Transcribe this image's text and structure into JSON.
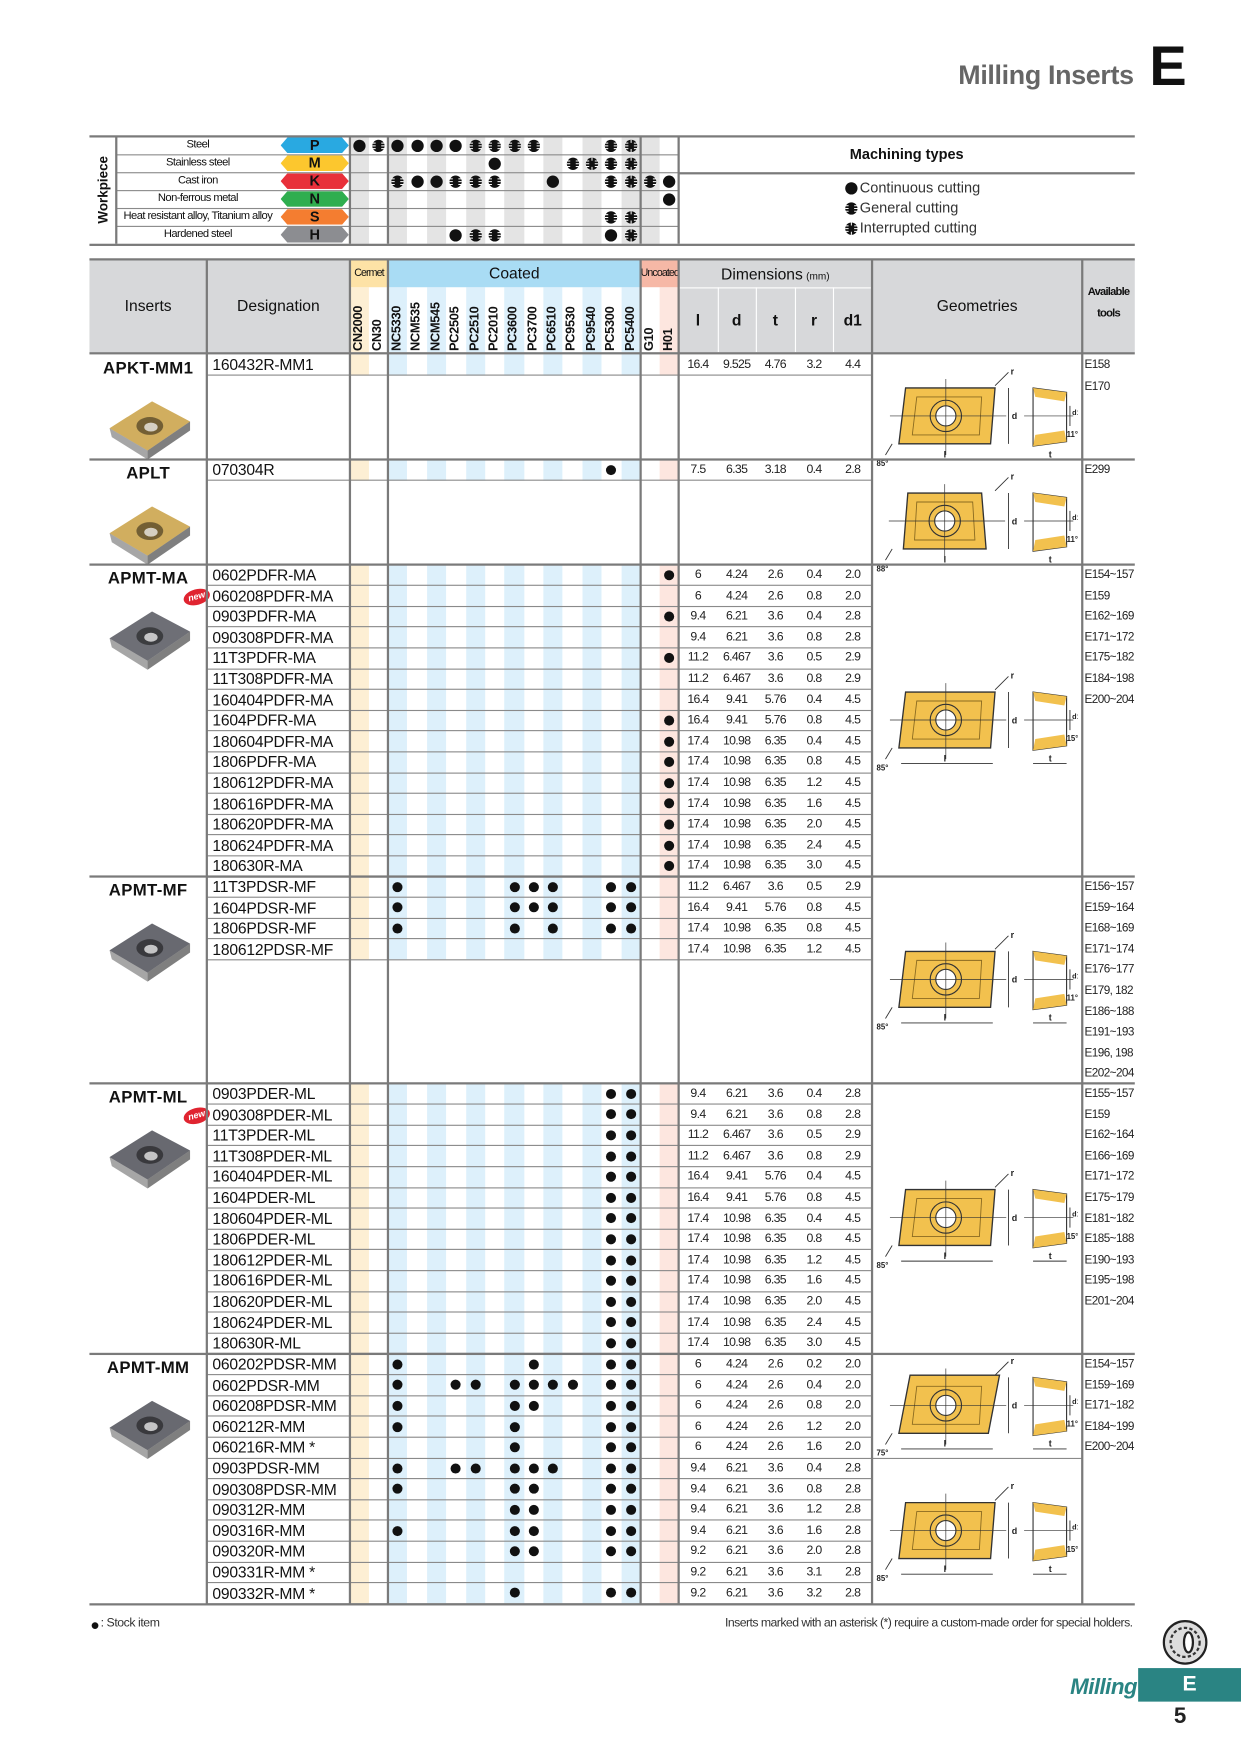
{
  "header": {
    "title": "Milling Inserts",
    "chapter": "E"
  },
  "grade_groups": [
    {
      "label": "Cermet",
      "color": "#fde2a6",
      "stripe": "#fdefd4",
      "grades": [
        "CN2000",
        "CN30"
      ]
    },
    {
      "label": "Coated",
      "color": "#a9dcf4",
      "stripe": "#ddf0fb",
      "grades": [
        "NC5330",
        "NCM535",
        "NCM545",
        "PC2505",
        "PC2510",
        "PC2010",
        "PC3600",
        "PC3700",
        "PC6510",
        "PC9530",
        "PC9540",
        "PC5300",
        "PC5400"
      ]
    },
    {
      "label": "Uncoated",
      "color": "#f6b8a6",
      "stripe": "#fde6df",
      "grades": [
        "G10",
        "H01"
      ]
    }
  ],
  "workpiece": {
    "label": "Workpiece",
    "materials": [
      {
        "name": "Steel",
        "code": "P",
        "color": "#29a9e1",
        "marks": [
          "c",
          "g",
          "c",
          "c",
          "c",
          "c",
          "g",
          "g",
          "g",
          "g",
          "",
          "",
          "",
          "g",
          "i",
          "",
          ""
        ]
      },
      {
        "name": "Stainless steel",
        "code": "M",
        "color": "#fcc72e",
        "marks": [
          "",
          "",
          "",
          "",
          "",
          "",
          "",
          "c",
          "",
          "",
          "",
          "g",
          "i",
          "g",
          "i",
          "",
          ""
        ]
      },
      {
        "name": "Cast iron",
        "code": "K",
        "color": "#e8303a",
        "marks": [
          "",
          "",
          "g",
          "c",
          "c",
          "g",
          "g",
          "g",
          "",
          "",
          "c",
          "",
          "",
          "g",
          "i",
          "g",
          "c"
        ]
      },
      {
        "name": "Non-ferrous metal",
        "code": "N",
        "color": "#2fae4f",
        "marks": [
          "",
          "",
          "",
          "",
          "",
          "",
          "",
          "",
          "",
          "",
          "",
          "",
          "",
          "",
          "",
          "",
          "c"
        ]
      },
      {
        "name": "Heat resistant alloy, Titanium alloy",
        "code": "S",
        "color": "#f47d30",
        "marks": [
          "",
          "",
          "",
          "",
          "",
          "",
          "",
          "",
          "",
          "",
          "",
          "",
          "",
          "g",
          "i",
          "",
          ""
        ]
      },
      {
        "name": "Hardened steel",
        "code": "H",
        "color": "#8c8d91",
        "marks": [
          "",
          "",
          "",
          "",
          "",
          "c",
          "g",
          "g",
          "",
          "",
          "",
          "",
          "",
          "c",
          "i",
          "",
          ""
        ]
      }
    ]
  },
  "machining_types": {
    "title": "Machining types",
    "legend": [
      {
        "symbol": "c",
        "label": "Continuous cutting"
      },
      {
        "symbol": "g",
        "label": "General cutting"
      },
      {
        "symbol": "i",
        "label": "Interrupted cutting"
      }
    ]
  },
  "table": {
    "inserts": "Inserts",
    "designation": "Designation",
    "dimensions": "Dimensions",
    "dimensions_unit": "(mm)",
    "dims": [
      "l",
      "d",
      "t",
      "r",
      "d1"
    ],
    "geometries": "Geometries",
    "tools_line1": "Available",
    "tools_line2": "tools"
  },
  "sections": [
    {
      "name": "APKT-MM1",
      "new": false,
      "insert_color": "#c9a043",
      "rows": [
        {
          "designation": "160432R-MM1",
          "stock": [],
          "dims": [
            "16.4",
            "9.525",
            "4.76",
            "3.2",
            "4.4"
          ]
        }
      ],
      "tools": [
        "E158",
        "E170"
      ],
      "geometries": [
        {
          "lead_angle": "85°",
          "clearance_angle": "11°"
        }
      ]
    },
    {
      "name": "APLT",
      "new": false,
      "insert_color": "#c9a043",
      "rows": [
        {
          "designation": "070304R",
          "stock": [
            "PC5300"
          ],
          "dims": [
            "7.5",
            "6.35",
            "3.18",
            "0.4",
            "2.8"
          ]
        }
      ],
      "tools": [
        "E299"
      ],
      "geometries": [
        {
          "lead_angle": "88°",
          "clearance_angle": "11°"
        }
      ]
    },
    {
      "name": "APMT-MA",
      "new": true,
      "insert_color": "#55565e",
      "rows": [
        {
          "designation": "0602PDFR-MA",
          "stock": [
            "H01"
          ],
          "dims": [
            "6",
            "4.24",
            "2.6",
            "0.4",
            "2.0"
          ]
        },
        {
          "designation": "060208PDFR-MA",
          "stock": [],
          "dims": [
            "6",
            "4.24",
            "2.6",
            "0.8",
            "2.0"
          ]
        },
        {
          "designation": "0903PDFR-MA",
          "stock": [
            "H01"
          ],
          "dims": [
            "9.4",
            "6.21",
            "3.6",
            "0.4",
            "2.8"
          ]
        },
        {
          "designation": "090308PDFR-MA",
          "stock": [],
          "dims": [
            "9.4",
            "6.21",
            "3.6",
            "0.8",
            "2.8"
          ]
        },
        {
          "designation": "11T3PDFR-MA",
          "stock": [
            "H01"
          ],
          "dims": [
            "11.2",
            "6.467",
            "3.6",
            "0.5",
            "2.9"
          ]
        },
        {
          "designation": "11T308PDFR-MA",
          "stock": [],
          "dims": [
            "11.2",
            "6.467",
            "3.6",
            "0.8",
            "2.9"
          ]
        },
        {
          "designation": "160404PDFR-MA",
          "stock": [],
          "dims": [
            "16.4",
            "9.41",
            "5.76",
            "0.4",
            "4.5"
          ]
        },
        {
          "designation": "1604PDFR-MA",
          "stock": [
            "H01"
          ],
          "dims": [
            "16.4",
            "9.41",
            "5.76",
            "0.8",
            "4.5"
          ]
        },
        {
          "designation": "180604PDFR-MA",
          "stock": [
            "H01"
          ],
          "dims": [
            "17.4",
            "10.98",
            "6.35",
            "0.4",
            "4.5"
          ]
        },
        {
          "designation": "1806PDFR-MA",
          "stock": [
            "H01"
          ],
          "dims": [
            "17.4",
            "10.98",
            "6.35",
            "0.8",
            "4.5"
          ]
        },
        {
          "designation": "180612PDFR-MA",
          "stock": [
            "H01"
          ],
          "dims": [
            "17.4",
            "10.98",
            "6.35",
            "1.2",
            "4.5"
          ]
        },
        {
          "designation": "180616PDFR-MA",
          "stock": [
            "H01"
          ],
          "dims": [
            "17.4",
            "10.98",
            "6.35",
            "1.6",
            "4.5"
          ]
        },
        {
          "designation": "180620PDFR-MA",
          "stock": [
            "H01"
          ],
          "dims": [
            "17.4",
            "10.98",
            "6.35",
            "2.0",
            "4.5"
          ]
        },
        {
          "designation": "180624PDFR-MA",
          "stock": [
            "H01"
          ],
          "dims": [
            "17.4",
            "10.98",
            "6.35",
            "2.4",
            "4.5"
          ]
        },
        {
          "designation": "180630R-MA",
          "stock": [
            "H01"
          ],
          "dims": [
            "17.4",
            "10.98",
            "6.35",
            "3.0",
            "4.5"
          ]
        }
      ],
      "tools": [
        "E154~157",
        "E159",
        "E162~169",
        "E171~172",
        "E175~182",
        "E184~198",
        "E200~204"
      ],
      "geometries": [
        {
          "lead_angle": "85°",
          "clearance_angle": "15°"
        }
      ]
    },
    {
      "name": "APMT-MF",
      "new": false,
      "insert_color": "#4e4f57",
      "rows": [
        {
          "designation": "11T3PDSR-MF",
          "stock": [
            "NC5330",
            "PC3600",
            "PC3700",
            "PC6510",
            "PC5300",
            "PC5400"
          ],
          "dims": [
            "11.2",
            "6.467",
            "3.6",
            "0.5",
            "2.9"
          ]
        },
        {
          "designation": "1604PDSR-MF",
          "stock": [
            "NC5330",
            "PC3600",
            "PC3700",
            "PC6510",
            "PC5300",
            "PC5400"
          ],
          "dims": [
            "16.4",
            "9.41",
            "5.76",
            "0.8",
            "4.5"
          ]
        },
        {
          "designation": "1806PDSR-MF",
          "stock": [
            "NC5330",
            "PC3600",
            "PC6510",
            "PC5300",
            "PC5400"
          ],
          "dims": [
            "17.4",
            "10.98",
            "6.35",
            "0.8",
            "4.5"
          ]
        },
        {
          "designation": "180612PDSR-MF",
          "stock": [],
          "dims": [
            "17.4",
            "10.98",
            "6.35",
            "1.2",
            "4.5"
          ]
        }
      ],
      "tools": [
        "E156~157",
        "E159~164",
        "E168~169",
        "E171~174",
        "E176~177",
        "E179, 182",
        "E186~188",
        "E191~193",
        "E196, 198",
        "E202~204"
      ],
      "geometries": [
        {
          "lead_angle": "85°",
          "clearance_angle": "11°"
        }
      ]
    },
    {
      "name": "APMT-ML",
      "new": true,
      "insert_color": "#4e4f57",
      "rows": [
        {
          "designation": "0903PDER-ML",
          "stock": [
            "PC5300",
            "PC5400"
          ],
          "dims": [
            "9.4",
            "6.21",
            "3.6",
            "0.4",
            "2.8"
          ]
        },
        {
          "designation": "090308PDER-ML",
          "stock": [
            "PC5300",
            "PC5400"
          ],
          "dims": [
            "9.4",
            "6.21",
            "3.6",
            "0.8",
            "2.8"
          ]
        },
        {
          "designation": "11T3PDER-ML",
          "stock": [
            "PC5300",
            "PC5400"
          ],
          "dims": [
            "11.2",
            "6.467",
            "3.6",
            "0.5",
            "2.9"
          ]
        },
        {
          "designation": "11T308PDER-ML",
          "stock": [
            "PC5300",
            "PC5400"
          ],
          "dims": [
            "11.2",
            "6.467",
            "3.6",
            "0.8",
            "2.9"
          ]
        },
        {
          "designation": "160404PDER-ML",
          "stock": [
            "PC5300",
            "PC5400"
          ],
          "dims": [
            "16.4",
            "9.41",
            "5.76",
            "0.4",
            "4.5"
          ]
        },
        {
          "designation": "1604PDER-ML",
          "stock": [
            "PC5300",
            "PC5400"
          ],
          "dims": [
            "16.4",
            "9.41",
            "5.76",
            "0.8",
            "4.5"
          ]
        },
        {
          "designation": "180604PDER-ML",
          "stock": [
            "PC5300",
            "PC5400"
          ],
          "dims": [
            "17.4",
            "10.98",
            "6.35",
            "0.4",
            "4.5"
          ]
        },
        {
          "designation": "1806PDER-ML",
          "stock": [
            "PC5300",
            "PC5400"
          ],
          "dims": [
            "17.4",
            "10.98",
            "6.35",
            "0.8",
            "4.5"
          ]
        },
        {
          "designation": "180612PDER-ML",
          "stock": [
            "PC5300",
            "PC5400"
          ],
          "dims": [
            "17.4",
            "10.98",
            "6.35",
            "1.2",
            "4.5"
          ]
        },
        {
          "designation": "180616PDER-ML",
          "stock": [
            "PC5300",
            "PC5400"
          ],
          "dims": [
            "17.4",
            "10.98",
            "6.35",
            "1.6",
            "4.5"
          ]
        },
        {
          "designation": "180620PDER-ML",
          "stock": [
            "PC5300",
            "PC5400"
          ],
          "dims": [
            "17.4",
            "10.98",
            "6.35",
            "2.0",
            "4.5"
          ]
        },
        {
          "designation": "180624PDER-ML",
          "stock": [
            "PC5300",
            "PC5400"
          ],
          "dims": [
            "17.4",
            "10.98",
            "6.35",
            "2.4",
            "4.5"
          ]
        },
        {
          "designation": "180630R-ML",
          "stock": [
            "PC5300",
            "PC5400"
          ],
          "dims": [
            "17.4",
            "10.98",
            "6.35",
            "3.0",
            "4.5"
          ]
        }
      ],
      "tools": [
        "E155~157",
        "E159",
        "E162~164",
        "E166~169",
        "E171~172",
        "E175~179",
        "E181~182",
        "E185~188",
        "E190~193",
        "E195~198",
        "E201~204"
      ],
      "geometries": [
        {
          "lead_angle": "85°",
          "clearance_angle": "15°"
        }
      ]
    },
    {
      "name": "APMT-MM",
      "new": false,
      "insert_color": "#4e4f57",
      "rows": [
        {
          "designation": "060202PDSR-MM",
          "stock": [
            "NC5330",
            "PC3700",
            "PC5300",
            "PC5400"
          ],
          "dims": [
            "6",
            "4.24",
            "2.6",
            "0.2",
            "2.0"
          ]
        },
        {
          "designation": "0602PDSR-MM",
          "stock": [
            "NC5330",
            "PC2505",
            "PC2510",
            "PC3600",
            "PC3700",
            "PC6510",
            "PC9530",
            "PC5300",
            "PC5400"
          ],
          "dims": [
            "6",
            "4.24",
            "2.6",
            "0.4",
            "2.0"
          ]
        },
        {
          "designation": "060208PDSR-MM",
          "stock": [
            "NC5330",
            "PC3600",
            "PC3700",
            "PC5300",
            "PC5400"
          ],
          "dims": [
            "6",
            "4.24",
            "2.6",
            "0.8",
            "2.0"
          ]
        },
        {
          "designation": "060212R-MM",
          "stock": [
            "NC5330",
            "PC3600",
            "PC5300",
            "PC5400"
          ],
          "dims": [
            "6",
            "4.24",
            "2.6",
            "1.2",
            "2.0"
          ]
        },
        {
          "designation": "060216R-MM *",
          "stock": [
            "PC3600",
            "PC5300",
            "PC5400"
          ],
          "dims": [
            "6",
            "4.24",
            "2.6",
            "1.6",
            "2.0"
          ]
        },
        {
          "designation": "0903PDSR-MM",
          "stock": [
            "NC5330",
            "PC2505",
            "PC2510",
            "PC3600",
            "PC3700",
            "PC6510",
            "PC5300",
            "PC5400"
          ],
          "dims": [
            "9.4",
            "6.21",
            "3.6",
            "0.4",
            "2.8"
          ]
        },
        {
          "designation": "090308PDSR-MM",
          "stock": [
            "NC5330",
            "PC3600",
            "PC3700",
            "PC5300",
            "PC5400"
          ],
          "dims": [
            "9.4",
            "6.21",
            "3.6",
            "0.8",
            "2.8"
          ]
        },
        {
          "designation": "090312R-MM",
          "stock": [
            "PC3600",
            "PC3700",
            "PC5300",
            "PC5400"
          ],
          "dims": [
            "9.4",
            "6.21",
            "3.6",
            "1.2",
            "2.8"
          ]
        },
        {
          "designation": "090316R-MM",
          "stock": [
            "NC5330",
            "PC3600",
            "PC3700",
            "PC5300",
            "PC5400"
          ],
          "dims": [
            "9.4",
            "6.21",
            "3.6",
            "1.6",
            "2.8"
          ]
        },
        {
          "designation": "090320R-MM",
          "stock": [
            "PC3600",
            "PC3700",
            "PC5300",
            "PC5400"
          ],
          "dims": [
            "9.2",
            "6.21",
            "3.6",
            "2.0",
            "2.8"
          ]
        },
        {
          "designation": "090331R-MM *",
          "stock": [],
          "dims": [
            "9.2",
            "6.21",
            "3.6",
            "3.1",
            "2.8"
          ]
        },
        {
          "designation": "090332R-MM *",
          "stock": [
            "PC3600",
            "PC5300",
            "PC5400"
          ],
          "dims": [
            "9.2",
            "6.21",
            "3.6",
            "3.2",
            "2.8"
          ]
        }
      ],
      "tools": [
        "E154~157",
        "E159~169",
        "E171~182",
        "E184~199",
        "E200~204"
      ],
      "geometries": [
        {
          "lead_angle": "75°",
          "clearance_angle": "11°"
        },
        {
          "lead_angle": "85°",
          "clearance_angle": "15°"
        }
      ]
    }
  ],
  "badge_new": "new",
  "footer": {
    "stock_legend": ": Stock item",
    "note": "Inserts marked with an asterisk (*) require a custom-made order for special holders.",
    "section": "Milling",
    "chapter": "E",
    "page": "5",
    "accent": "#2a8483"
  }
}
